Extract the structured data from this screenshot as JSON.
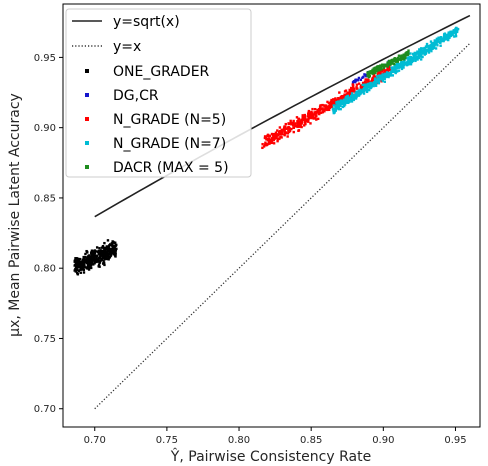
{
  "chart_data": {
    "type": "scatter",
    "title": "",
    "xlabel": "Ŷ, Pairwise Consistency Rate",
    "ylabel": "μx, Mean Pairwise Latent Accuracy",
    "xlim": [
      0.678,
      0.967
    ],
    "ylim": [
      0.687,
      0.988
    ],
    "xticks": [
      "0.70",
      "0.75",
      "0.80",
      "0.85",
      "0.90",
      "0.95"
    ],
    "xtick_values": [
      0.7,
      0.75,
      0.8,
      0.85,
      0.9,
      0.95
    ],
    "yticks": [
      "0.70",
      "0.75",
      "0.80",
      "0.85",
      "0.90",
      "0.95"
    ],
    "ytick_values": [
      0.7,
      0.75,
      0.8,
      0.85,
      0.9,
      0.95
    ],
    "grid": false,
    "legend_position": "top-left",
    "lines": [
      {
        "name": "y=sqrt(x)",
        "style": "solid",
        "color": "#222222",
        "x_range": [
          0.7,
          0.96
        ]
      },
      {
        "name": "y=x",
        "style": "dotted",
        "color": "#333333",
        "x_range": [
          0.7,
          0.96
        ]
      }
    ],
    "series": [
      {
        "name": "ONE_GRADER",
        "color": "#000000",
        "x_range": [
          0.686,
          0.715
        ],
        "y_center_at_x": [
          [
            0.686,
            0.801
          ],
          [
            0.715,
            0.814
          ]
        ],
        "y_spread": 0.006,
        "n": 400
      },
      {
        "name": "DG,CR",
        "color": "#1515cc",
        "x_range": [
          0.878,
          0.905
        ],
        "y_center_at_x": [
          [
            0.878,
            0.932
          ],
          [
            0.905,
            0.946
          ]
        ],
        "y_spread": 0.002,
        "n": 40
      },
      {
        "name": "N_GRADE (N=5)",
        "color": "#ff0000",
        "x_range": [
          0.816,
          0.905
        ],
        "y_center_at_x": [
          [
            0.816,
            0.888
          ],
          [
            0.905,
            0.941
          ]
        ],
        "y_spread": 0.004,
        "n": 500
      },
      {
        "name": "N_GRADE (N=7)",
        "color": "#00bcd4",
        "x_range": [
          0.865,
          0.952
        ],
        "y_center_at_x": [
          [
            0.865,
            0.913
          ],
          [
            0.952,
            0.97
          ]
        ],
        "y_spread": 0.003,
        "n": 600
      },
      {
        "name": "DACR (MAX = 5)",
        "color": "#1e8c1e",
        "x_range": [
          0.889,
          0.918
        ],
        "y_center_at_x": [
          [
            0.889,
            0.938
          ],
          [
            0.918,
            0.953
          ]
        ],
        "y_spread": 0.002,
        "n": 160
      }
    ]
  }
}
